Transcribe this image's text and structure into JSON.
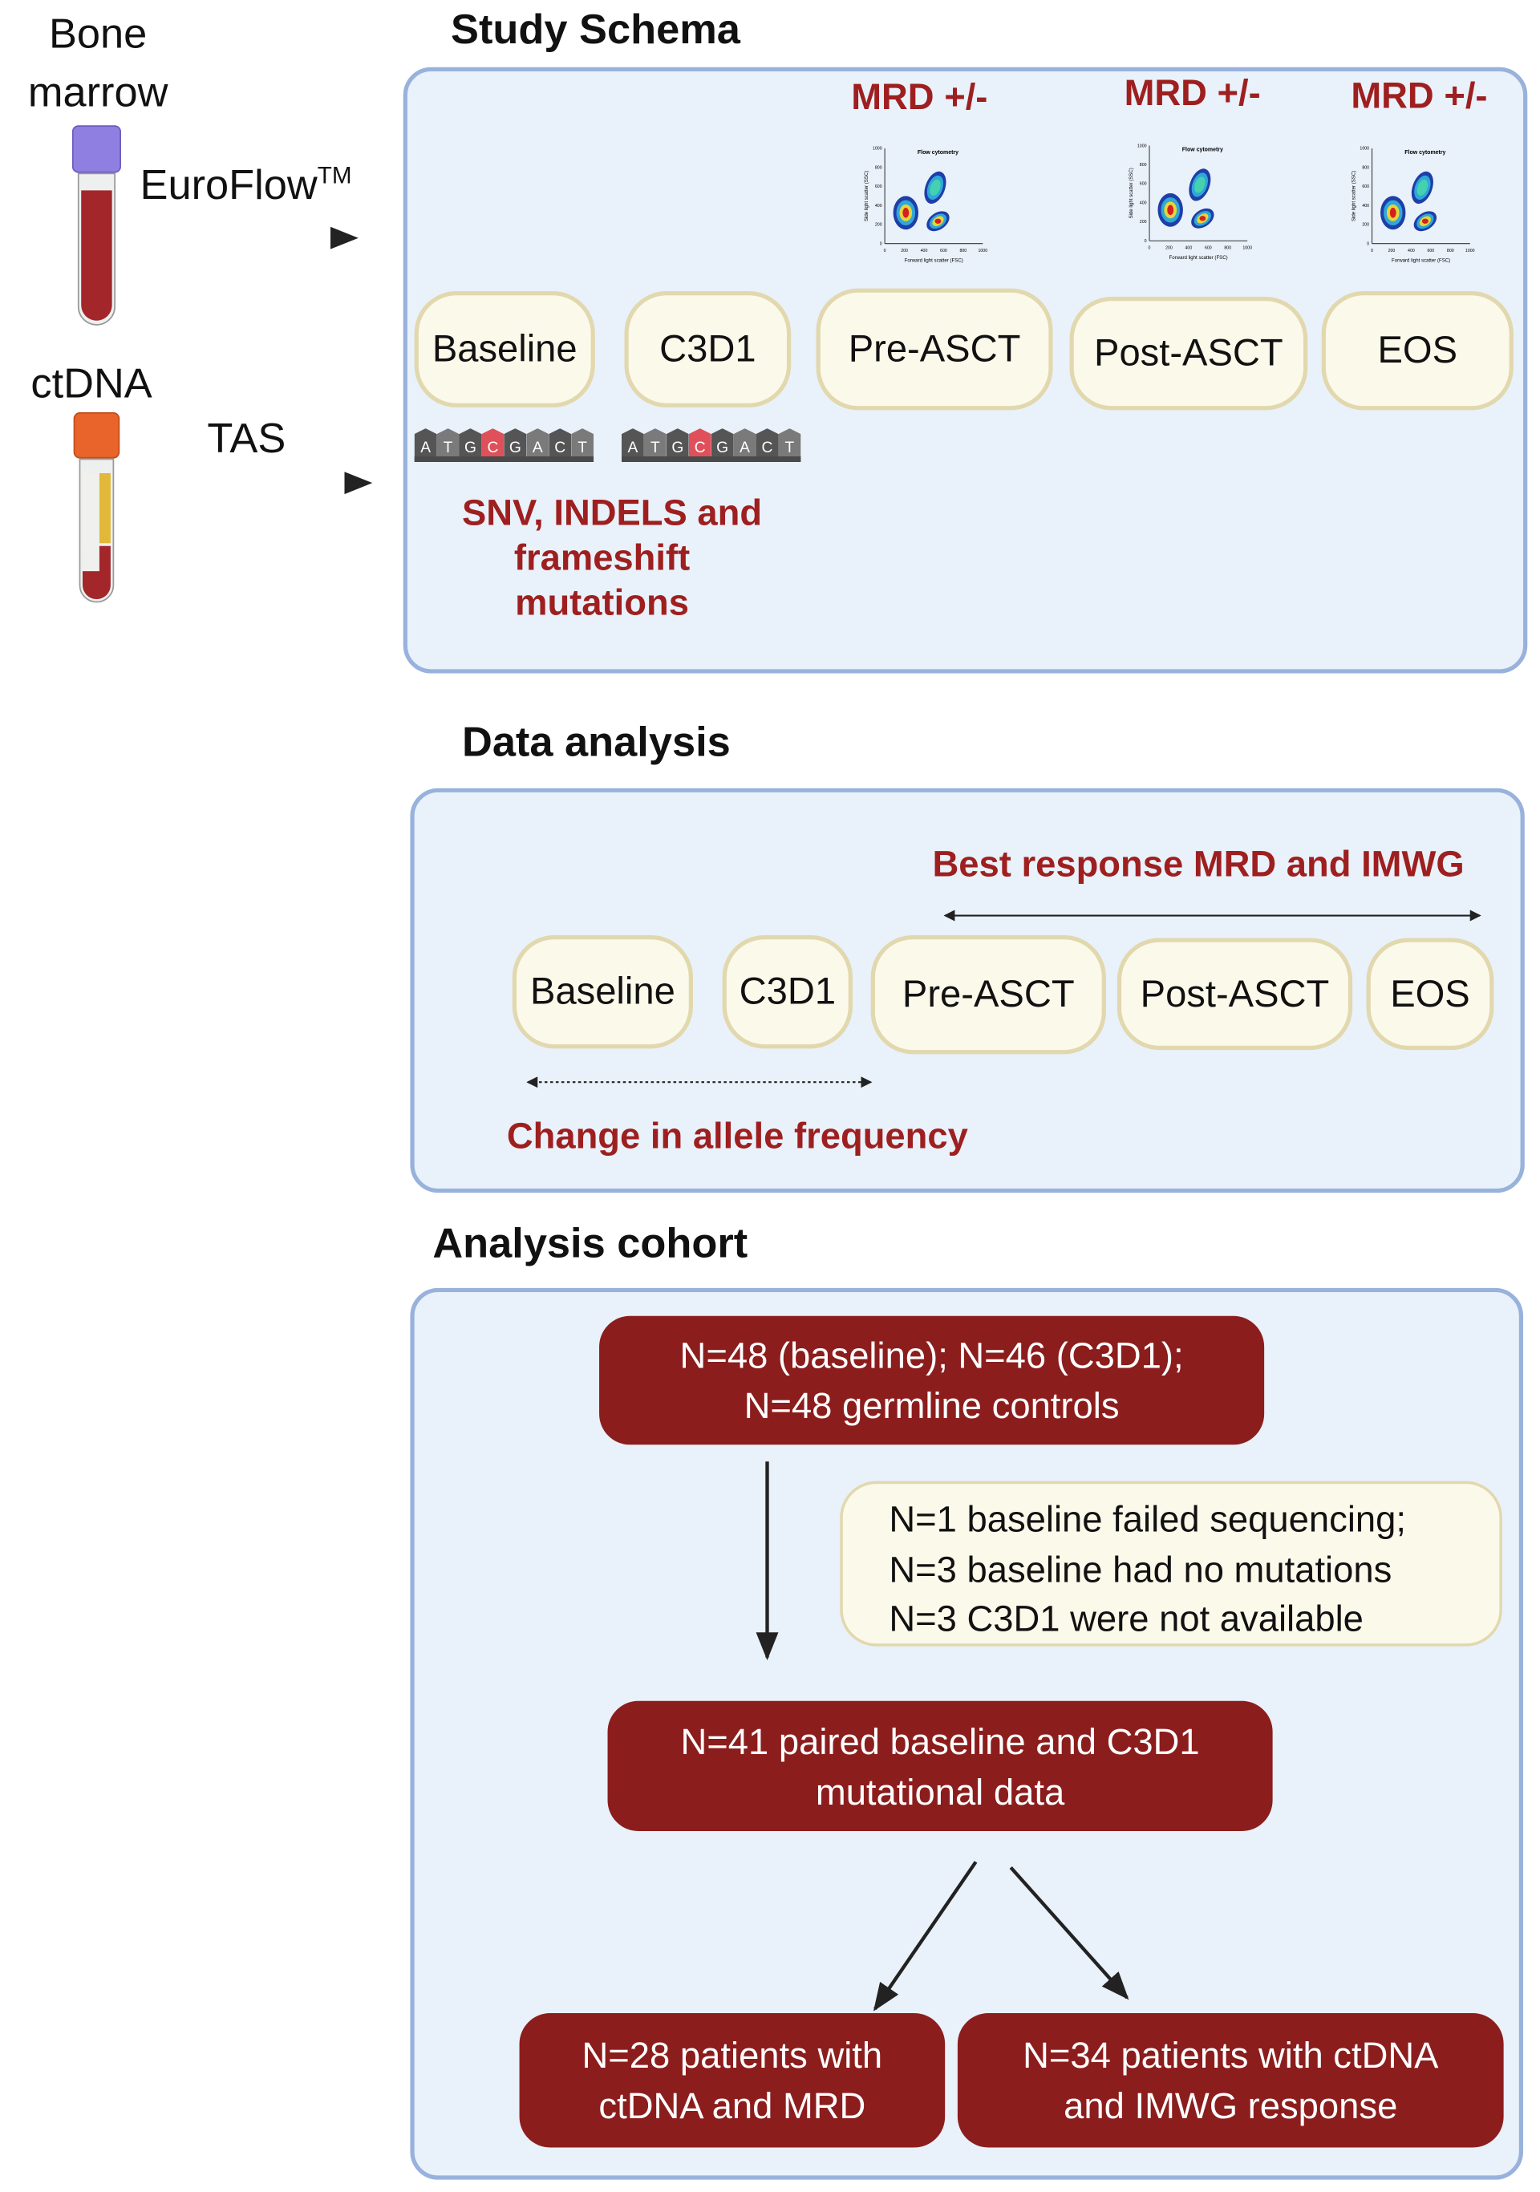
{
  "left": {
    "bone_marrow_line1": "Bone",
    "bone_marrow_line2": "marrow",
    "euroflow": "EuroFlow",
    "euroflow_tm": "TM",
    "ctdna": "ctDNA",
    "tas": "TAS"
  },
  "study_schema": {
    "title": "Study Schema",
    "mrd_labels": [
      "MRD +/-",
      "MRD +/-",
      "MRD +/-"
    ],
    "timepoints": [
      "Baseline",
      "C3D1",
      "Pre-ASCT",
      "Post-ASCT",
      "EOS"
    ],
    "sequence": [
      "A",
      "T",
      "G",
      "C",
      "G",
      "A",
      "C",
      "T"
    ],
    "mutation_text": [
      "SNV, INDELS and",
      "frameshift",
      "mutations"
    ],
    "flow_plot": {
      "title": "Flow cytometry",
      "xlabel": "Forward light scatter (FSC)",
      "ylabel": "Side light scatter (SSC)",
      "ticks": [
        "0",
        "200",
        "400",
        "600",
        "800",
        "1000"
      ]
    }
  },
  "data_analysis": {
    "title": "Data analysis",
    "best_response": "Best response MRD and IMWG",
    "timepoints": [
      "Baseline",
      "C3D1",
      "Pre-ASCT",
      "Post-ASCT",
      "EOS"
    ],
    "change_label": "Change in allele frequency"
  },
  "cohort": {
    "title": "Analysis cohort",
    "box1": [
      "N=48 (baseline); N=46 (C3D1);",
      "N=48 germline controls"
    ],
    "exclusions": [
      "N=1 baseline failed sequencing;",
      "N=3 baseline had no mutations",
      "N=3 C3D1 were not available"
    ],
    "box2": [
      "N=41 paired baseline and C3D1",
      "mutational data"
    ],
    "box3": [
      "N=28 patients with",
      "ctDNA and MRD"
    ],
    "box4": [
      "N=34 patients with ctDNA",
      "and IMWG response"
    ]
  },
  "colors": {
    "accent_red": "#9e1f1f",
    "box_fill": "#e9f1fa",
    "box_border": "#98b2dc",
    "pill_fill": "#fbf9ea",
    "cohort_box": "#8c1d1d",
    "mutation_base": "#e0505a"
  }
}
